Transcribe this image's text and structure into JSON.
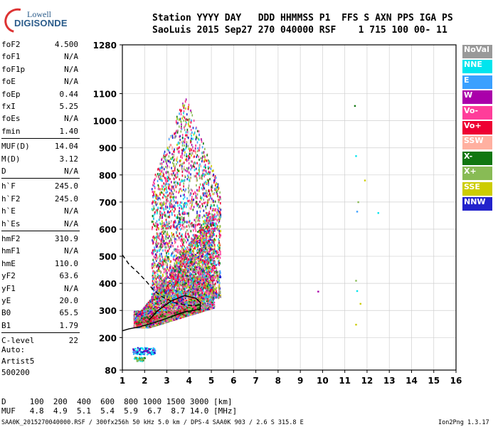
{
  "header": {
    "line1": "Station YYYY DAY   DDD HHMMSS P1  FFS S AXN PPS IGA PS",
    "line2": "SaoLuis 2015 Sep27 270 040000 RSF    1 715 100 00- 11"
  },
  "logo": {
    "line1": "Lowell",
    "line2": "DIGISONDE"
  },
  "params": [
    {
      "k": "foF2",
      "v": "4.500"
    },
    {
      "k": "foF1",
      "v": "N/A"
    },
    {
      "k": "foF1p",
      "v": "N/A"
    },
    {
      "k": "foE",
      "v": "N/A"
    },
    {
      "k": "foEp",
      "v": "0.44"
    },
    {
      "k": "fxI",
      "v": "5.25"
    },
    {
      "k": "foEs",
      "v": "N/A"
    },
    {
      "k": "fmin",
      "v": "1.40"
    },
    {
      "k": "MUF(D)",
      "v": "14.04"
    },
    {
      "k": "M(D)",
      "v": "3.12"
    },
    {
      "k": "D",
      "v": "N/A"
    },
    {
      "k": "h`F",
      "v": "245.0"
    },
    {
      "k": "h`F2",
      "v": "245.0"
    },
    {
      "k": "h`E",
      "v": "N/A"
    },
    {
      "k": "h`Es",
      "v": "N/A"
    },
    {
      "k": "hmF2",
      "v": "310.9"
    },
    {
      "k": "hmF1",
      "v": "N/A"
    },
    {
      "k": "hmE",
      "v": "110.0"
    },
    {
      "k": "yF2",
      "v": "63.6"
    },
    {
      "k": "yF1",
      "v": "N/A"
    },
    {
      "k": "yE",
      "v": "20.0"
    },
    {
      "k": "B0",
      "v": "65.5"
    },
    {
      "k": "B1",
      "v": "1.79"
    },
    {
      "k": "C-level",
      "v": "22"
    }
  ],
  "auto": [
    "Auto:",
    "Artist5",
    "500200"
  ],
  "legend": [
    {
      "label": "NoVal",
      "color": "#999999"
    },
    {
      "label": "NNE",
      "color": "#00e5ee"
    },
    {
      "label": "E",
      "color": "#3aa0ff"
    },
    {
      "label": "W",
      "color": "#aa00aa"
    },
    {
      "label": "Vo-",
      "color": "#ff3d9a"
    },
    {
      "label": "Vo+",
      "color": "#ee0033"
    },
    {
      "label": "SSW",
      "color": "#ffb0a0"
    },
    {
      "label": "X-",
      "color": "#117711"
    },
    {
      "label": "X+",
      "color": "#88bb55"
    },
    {
      "label": "SSE",
      "color": "#cccc00"
    },
    {
      "label": "NNW",
      "color": "#2222cc"
    }
  ],
  "bottom": {
    "d_row": "D     100  200  400  600  800 1000 1500 3000 [km]",
    "muf_row": "MUF   4.8  4.9  5.1  5.4  5.9  6.7  8.7 14.0 [MHz]"
  },
  "footer": {
    "left": "SAA0K_2015270040000.RSF / 300fx256h 50 kHz 5.0 km / DPS-4 SAA0K 903 / 2.6 S 315.8 E",
    "right": "Ion2Png 1.3.17"
  },
  "chart_data": {
    "type": "scatter",
    "x_label": "",
    "y_label": "",
    "xlim": [
      1,
      16
    ],
    "ylim": [
      80,
      1280
    ],
    "xticks": [
      1,
      2,
      3,
      4,
      5,
      6,
      7,
      8,
      9,
      10,
      11,
      12,
      13,
      14,
      15,
      16
    ],
    "yticks": [
      80,
      200,
      300,
      400,
      500,
      600,
      700,
      800,
      900,
      1000,
      1100,
      1280
    ],
    "grid": true,
    "traces": [
      {
        "name": "",
        "style": "solid",
        "x": [
          1.0,
          1.3,
          1.8,
          2.3,
          2.8,
          3.3,
          3.8,
          4.2,
          4.5,
          4.5,
          4.3,
          3.8,
          3.2,
          2.6,
          2.2
        ],
        "y": [
          225,
          232,
          240,
          252,
          265,
          280,
          295,
          300,
          305,
          330,
          345,
          355,
          335,
          300,
          265
        ]
      },
      {
        "name": "",
        "style": "dashed",
        "x": [
          1.0,
          1.3,
          1.7,
          2.1,
          2.4,
          2.8,
          3.3,
          3.8,
          4.2,
          4.5
        ],
        "y": [
          505,
          470,
          440,
          405,
          375,
          350,
          330,
          320,
          318,
          320
        ]
      }
    ],
    "outliers": [
      {
        "x": 11.45,
        "y": 1055,
        "c": "#117711"
      },
      {
        "x": 11.5,
        "y": 870,
        "c": "#00e5ee"
      },
      {
        "x": 11.6,
        "y": 700,
        "c": "#88bb55"
      },
      {
        "x": 11.9,
        "y": 780,
        "c": "#cccc00"
      },
      {
        "x": 11.55,
        "y": 665,
        "c": "#3aa0ff"
      },
      {
        "x": 12.5,
        "y": 660,
        "c": "#00e5ee"
      },
      {
        "x": 9.8,
        "y": 370,
        "c": "#aa00aa"
      },
      {
        "x": 11.5,
        "y": 410,
        "c": "#88bb55"
      },
      {
        "x": 11.55,
        "y": 372,
        "c": "#00e5ee"
      },
      {
        "x": 11.7,
        "y": 325,
        "c": "#cccc00"
      },
      {
        "x": 11.5,
        "y": 248,
        "c": "#cccc00"
      }
    ]
  }
}
